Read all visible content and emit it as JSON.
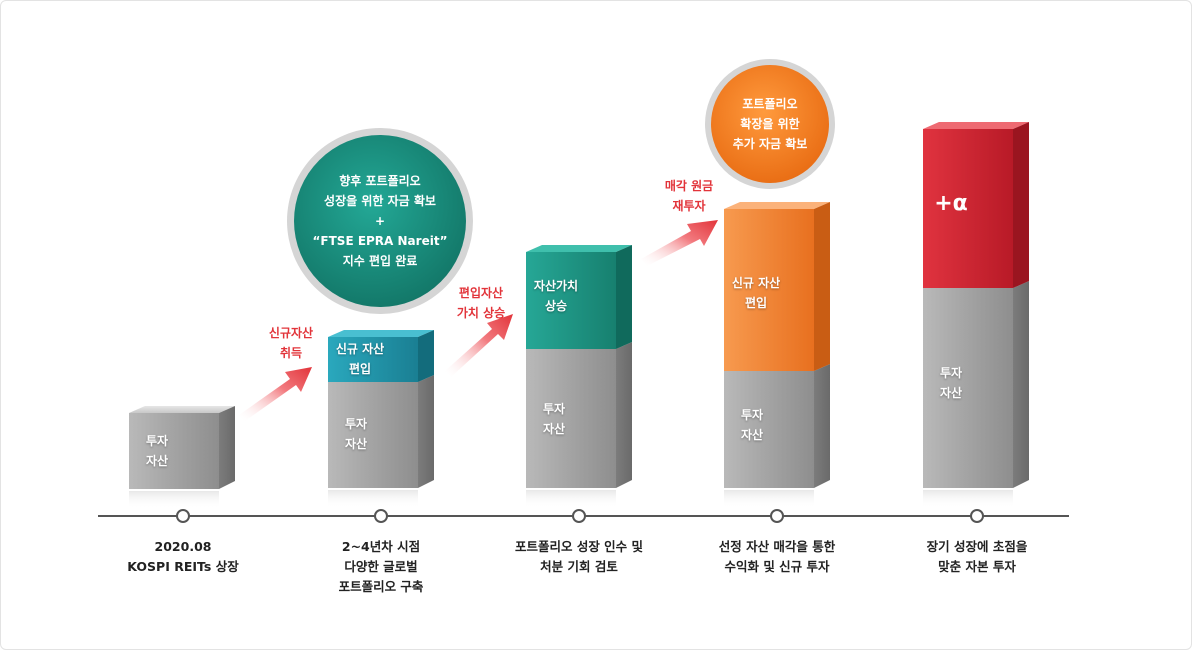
{
  "bubbles": {
    "left": {
      "lines": [
        "향후 포트폴리오",
        "성장을 위한 자금 확보",
        "+",
        "“FTSE EPRA Nareit”",
        "지수 편입 완료"
      ]
    },
    "right": {
      "lines": [
        "포트폴리오",
        "확장을 위한",
        "추가 자금 확보"
      ]
    }
  },
  "arrows": [
    {
      "label": "신규자산\n취득"
    },
    {
      "label": "편입자산\n가치 상승"
    },
    {
      "label": "매각 원금\n재투자"
    }
  ],
  "columns": [
    {
      "base_label": "투자\n자산",
      "top_label": ""
    },
    {
      "base_label": "투자\n자산",
      "top_label": "신규 자산\n편입"
    },
    {
      "base_label": "투자\n자산",
      "top_label": "자산가치\n상승"
    },
    {
      "base_label": "투자\n자산",
      "top_label": "신규 자산\n편입"
    },
    {
      "base_label": "투자\n자산",
      "top_label": "+α"
    }
  ],
  "colors": {
    "gray": "#9e9e9e",
    "teal_small": "#1f8ea3",
    "teal": "#1d9486",
    "orange": "#f07a2a",
    "red": "#d2202f",
    "bubble_teal": "#1a9484",
    "bubble_orange": "#f47a1f",
    "arrow_red": "#e2343a",
    "timeline": "#555555"
  },
  "timeline": [
    {
      "lines": [
        "2020.08",
        "KOSPI REITs 상장"
      ]
    },
    {
      "lines": [
        "2~4년차 시점",
        "다양한 글로벌",
        "포트폴리오 구축"
      ]
    },
    {
      "lines": [
        "포트폴리오 성장 인수 및",
        "처분 기회 검토"
      ]
    },
    {
      "lines": [
        "선정 자산 매각을 통한",
        "수익화 및 신규 투자"
      ]
    },
    {
      "lines": [
        "장기 성장에 초점을",
        "맞춘 자본 투자"
      ]
    }
  ]
}
